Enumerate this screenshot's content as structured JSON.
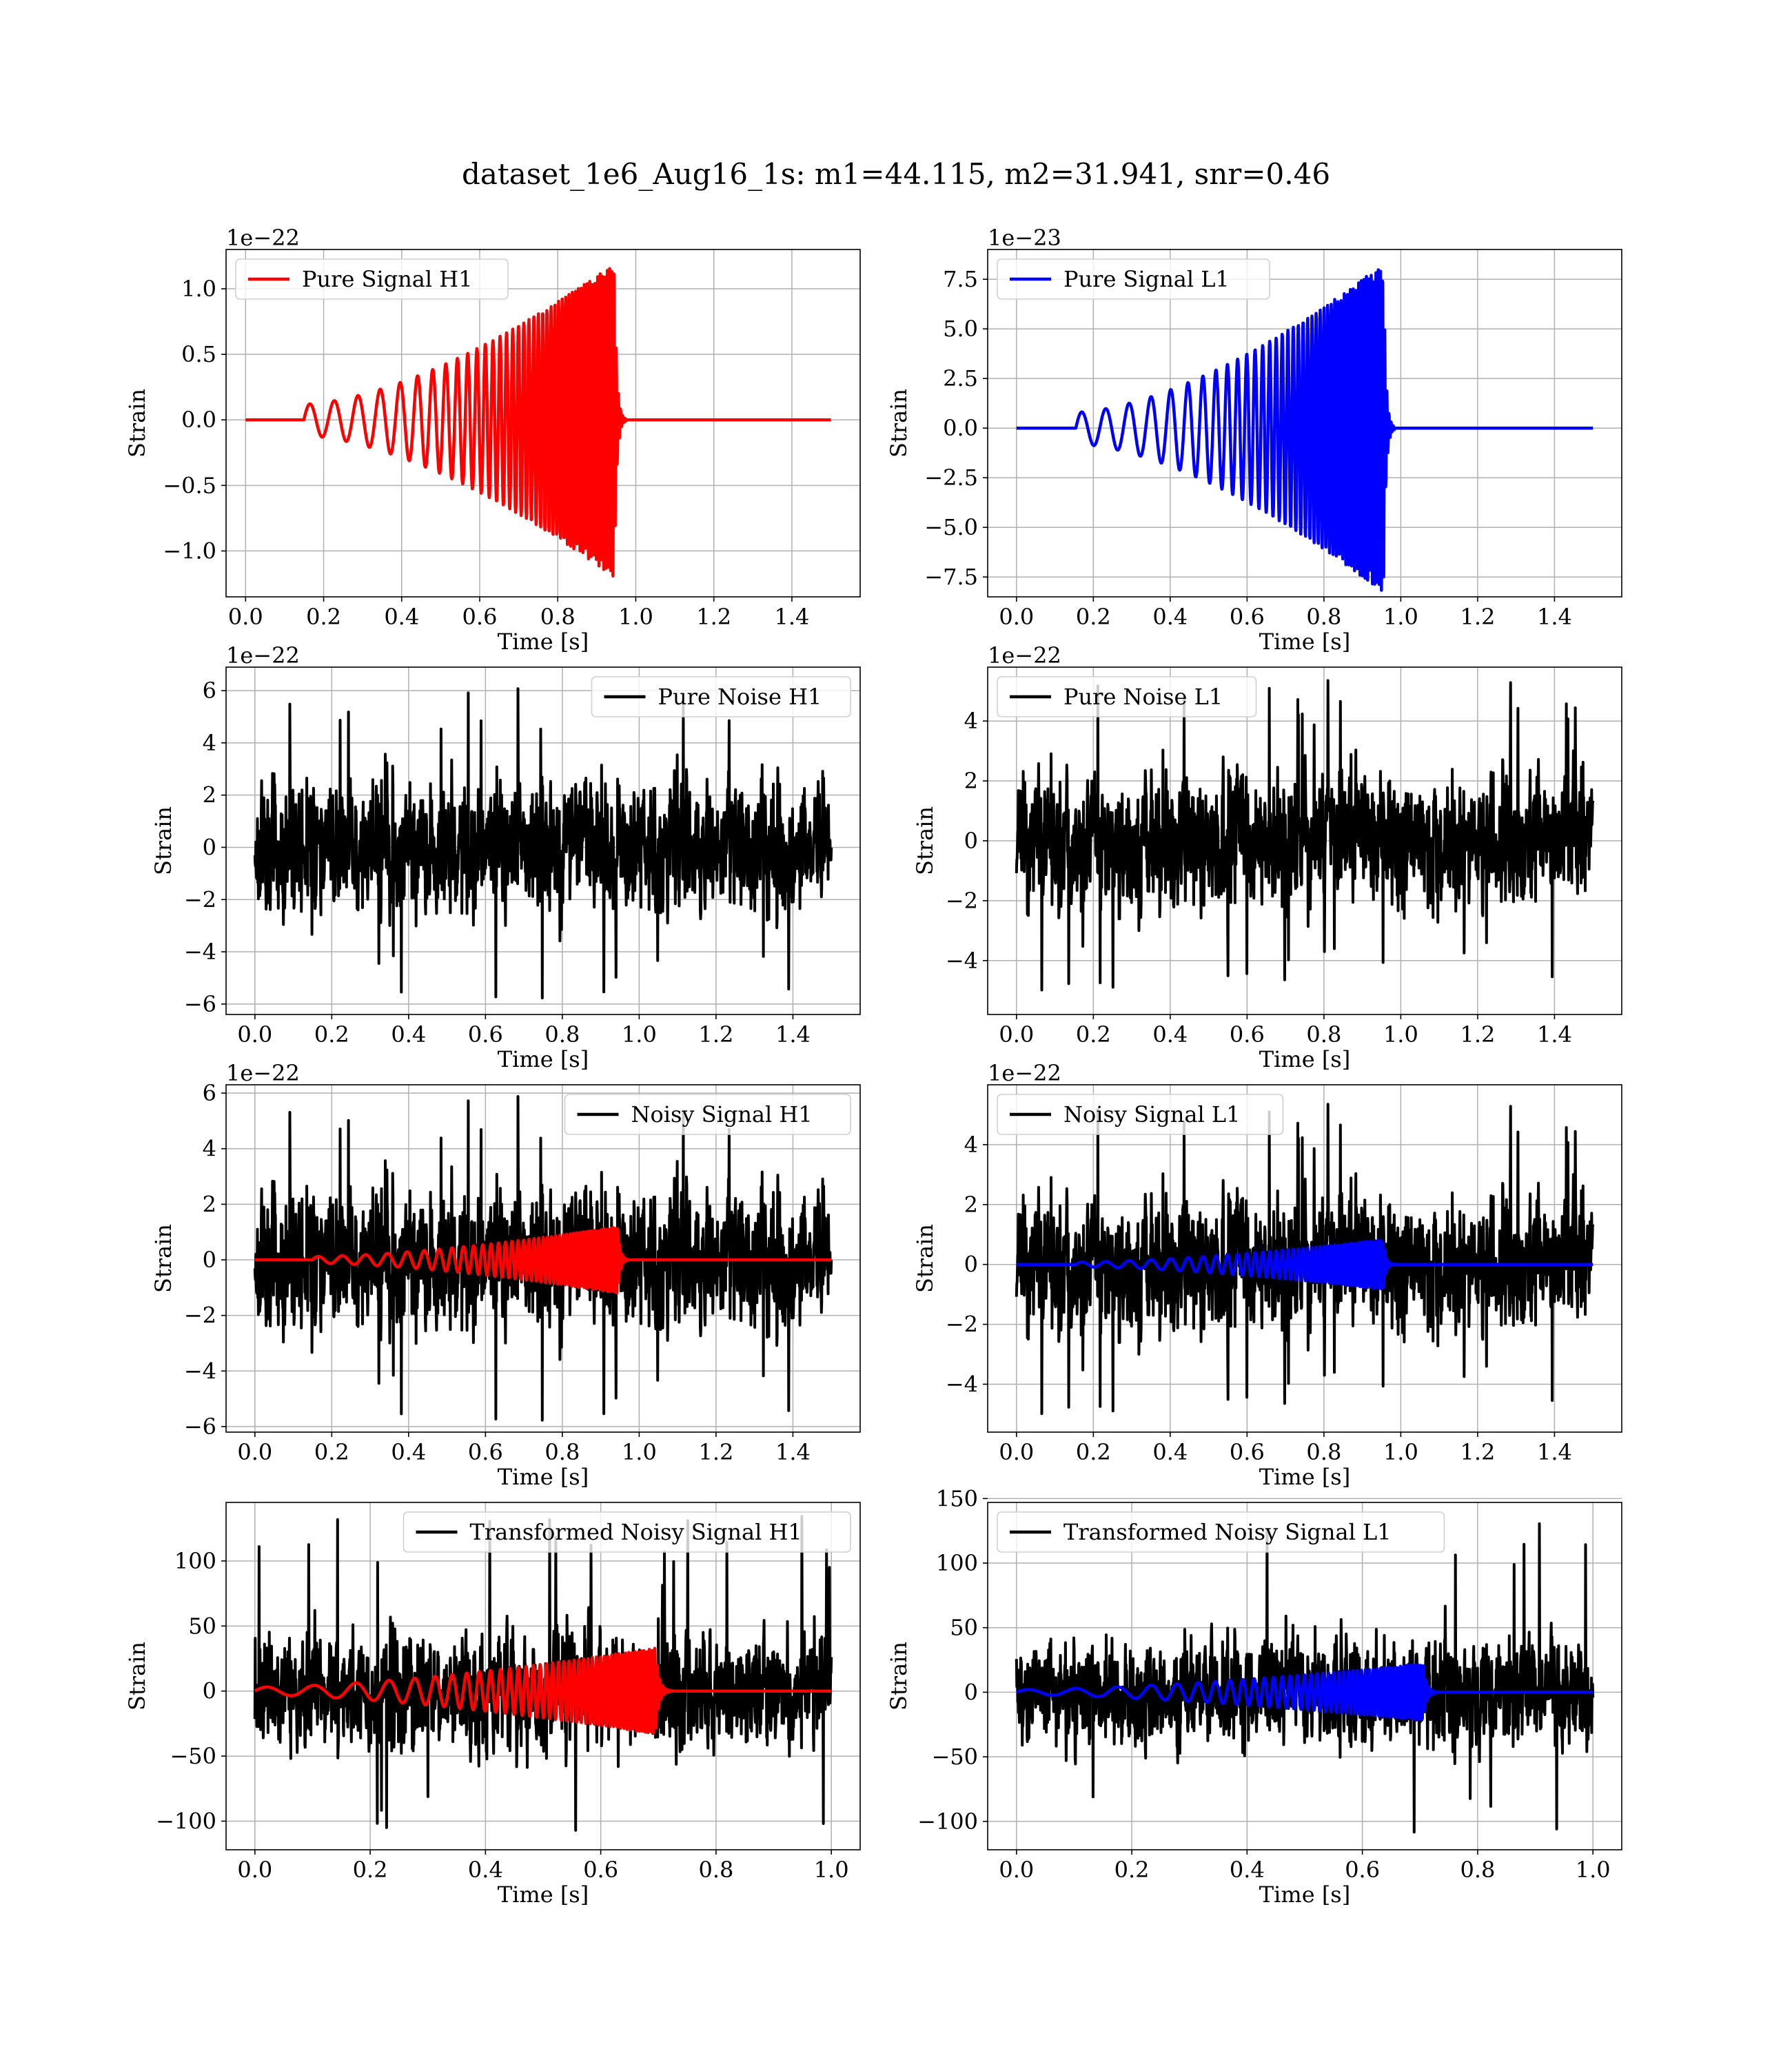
{
  "figure": {
    "title": "dataset_1e6_Aug16_1s: m1=44.115, m2=31.941, snr=0.46",
    "colors": {
      "h1_signal": "#ff0000",
      "l1_signal": "#0000ff",
      "noise": "#000000"
    }
  },
  "chart_data": [
    {
      "id": "pure-signal-h1",
      "type": "line",
      "xlabel": "Time [s]",
      "ylabel": "Strain",
      "offset_text": "1e−22",
      "xlim": [
        -0.05,
        1.575
      ],
      "ylim": [
        -1.35,
        1.3
      ],
      "xticks": [
        0.0,
        0.2,
        0.4,
        0.6,
        0.8,
        1.0,
        1.2,
        1.4
      ],
      "xtick_labels": [
        "0.0",
        "0.2",
        "0.4",
        "0.6",
        "0.8",
        "1.0",
        "1.2",
        "1.4"
      ],
      "yticks": [
        -1.0,
        -0.5,
        0.0,
        0.5,
        1.0
      ],
      "ytick_labels": [
        "−1.0",
        "−0.5",
        "0.0",
        "0.5",
        "1.0"
      ],
      "grid": true,
      "legend_position": "upper-left",
      "series": [
        {
          "name": "Pure Signal H1",
          "color": "#ff0000",
          "kind": "chirp",
          "x_range": [
            0.0,
            1.5
          ],
          "chirp": {
            "t_start": 0.15,
            "t_merge": 0.945,
            "peak_amplitude": 1.2,
            "start_amplitude": 0.12,
            "start_frequency": 16,
            "end_frequency": 180
          }
        }
      ]
    },
    {
      "id": "pure-signal-l1",
      "type": "line",
      "xlabel": "Time [s]",
      "ylabel": "Strain",
      "offset_text": "1e−23",
      "xlim": [
        -0.075,
        1.575
      ],
      "ylim": [
        -8.5,
        9.0
      ],
      "xticks": [
        0.0,
        0.2,
        0.4,
        0.6,
        0.8,
        1.0,
        1.2,
        1.4
      ],
      "xtick_labels": [
        "0.0",
        "0.2",
        "0.4",
        "0.6",
        "0.8",
        "1.0",
        "1.2",
        "1.4"
      ],
      "yticks": [
        -7.5,
        -5.0,
        -2.5,
        0.0,
        2.5,
        5.0,
        7.5
      ],
      "ytick_labels": [
        "−7.5",
        "−5.0",
        "−2.5",
        "0.0",
        "2.5",
        "5.0",
        "7.5"
      ],
      "grid": true,
      "legend_position": "upper-left",
      "series": [
        {
          "name": "Pure Signal L1",
          "color": "#0000ff",
          "kind": "chirp",
          "x_range": [
            0.0,
            1.5
          ],
          "chirp": {
            "t_start": 0.155,
            "t_merge": 0.955,
            "peak_amplitude": 8.3,
            "start_amplitude": 0.8,
            "start_frequency": 16,
            "end_frequency": 180
          }
        }
      ]
    },
    {
      "id": "pure-noise-h1",
      "type": "line",
      "xlabel": "Time [s]",
      "ylabel": "Strain",
      "offset_text": "1e−22",
      "xlim": [
        -0.075,
        1.575
      ],
      "ylim": [
        -6.4,
        6.9
      ],
      "xticks": [
        0.0,
        0.2,
        0.4,
        0.6,
        0.8,
        1.0,
        1.2,
        1.4
      ],
      "xtick_labels": [
        "0.0",
        "0.2",
        "0.4",
        "0.6",
        "0.8",
        "1.0",
        "1.2",
        "1.4"
      ],
      "yticks": [
        -6,
        -4,
        -2,
        0,
        2,
        4,
        6
      ],
      "ytick_labels": [
        "−6",
        "−4",
        "−2",
        "0",
        "2",
        "4",
        "6"
      ],
      "grid": true,
      "legend_position": "upper-right",
      "series": [
        {
          "name": "Pure Noise H1",
          "color": "#000000",
          "kind": "noise",
          "x_range": [
            0.0,
            1.5
          ],
          "noise": {
            "amplitude": 1.7,
            "max": 6.2,
            "min": -5.8,
            "seed": 11
          }
        }
      ]
    },
    {
      "id": "pure-noise-l1",
      "type": "line",
      "xlabel": "Time [s]",
      "ylabel": "Strain",
      "offset_text": "1e−22",
      "xlim": [
        -0.075,
        1.575
      ],
      "ylim": [
        -5.8,
        5.8
      ],
      "xticks": [
        0.0,
        0.2,
        0.4,
        0.6,
        0.8,
        1.0,
        1.2,
        1.4
      ],
      "xtick_labels": [
        "0.0",
        "0.2",
        "0.4",
        "0.6",
        "0.8",
        "1.0",
        "1.2",
        "1.4"
      ],
      "yticks": [
        -4,
        -2,
        0,
        2,
        4
      ],
      "ytick_labels": [
        "−4",
        "−2",
        "0",
        "2",
        "4"
      ],
      "grid": true,
      "legend_position": "upper-left",
      "series": [
        {
          "name": "Pure Noise L1",
          "color": "#000000",
          "kind": "noise",
          "x_range": [
            0.0,
            1.5
          ],
          "noise": {
            "amplitude": 1.5,
            "max": 5.4,
            "min": -5.0,
            "seed": 23
          }
        }
      ]
    },
    {
      "id": "noisy-signal-h1",
      "type": "line",
      "xlabel": "Time [s]",
      "ylabel": "Strain",
      "offset_text": "1e−22",
      "xlim": [
        -0.075,
        1.575
      ],
      "ylim": [
        -6.2,
        6.3
      ],
      "xticks": [
        0.0,
        0.2,
        0.4,
        0.6,
        0.8,
        1.0,
        1.2,
        1.4
      ],
      "xtick_labels": [
        "0.0",
        "0.2",
        "0.4",
        "0.6",
        "0.8",
        "1.0",
        "1.2",
        "1.4"
      ],
      "yticks": [
        -6,
        -4,
        -2,
        0,
        2,
        4,
        6
      ],
      "ytick_labels": [
        "−6",
        "−4",
        "−2",
        "0",
        "2",
        "4",
        "6"
      ],
      "grid": true,
      "legend_position": "upper-right",
      "series": [
        {
          "name": "Noisy Signal H1",
          "color": "#000000",
          "kind": "noise",
          "x_range": [
            0.0,
            1.5
          ],
          "noise": {
            "amplitude": 1.7,
            "max": 6.0,
            "min": -5.8,
            "seed": 11
          }
        },
        {
          "color": "#ff0000",
          "kind": "chirp",
          "x_range": [
            0.0,
            1.5
          ],
          "chirp": {
            "t_start": 0.15,
            "t_merge": 0.945,
            "peak_amplitude": 1.2,
            "start_amplitude": 0.12,
            "start_frequency": 16,
            "end_frequency": 180
          }
        }
      ]
    },
    {
      "id": "noisy-signal-l1",
      "type": "line",
      "xlabel": "Time [s]",
      "ylabel": "Strain",
      "offset_text": "1e−22",
      "xlim": [
        -0.075,
        1.575
      ],
      "ylim": [
        -5.6,
        6.0
      ],
      "xticks": [
        0.0,
        0.2,
        0.4,
        0.6,
        0.8,
        1.0,
        1.2,
        1.4
      ],
      "xtick_labels": [
        "0.0",
        "0.2",
        "0.4",
        "0.6",
        "0.8",
        "1.0",
        "1.2",
        "1.4"
      ],
      "yticks": [
        -4,
        -2,
        0,
        2,
        4
      ],
      "ytick_labels": [
        "−4",
        "−2",
        "0",
        "2",
        "4"
      ],
      "grid": true,
      "legend_position": "upper-left",
      "series": [
        {
          "name": "Noisy Signal L1",
          "color": "#000000",
          "kind": "noise",
          "x_range": [
            0.0,
            1.5
          ],
          "noise": {
            "amplitude": 1.5,
            "max": 5.4,
            "min": -5.0,
            "seed": 23
          }
        },
        {
          "color": "#0000ff",
          "kind": "chirp",
          "x_range": [
            0.0,
            1.5
          ],
          "chirp": {
            "t_start": 0.155,
            "t_merge": 0.955,
            "peak_amplitude": 0.83,
            "start_amplitude": 0.08,
            "start_frequency": 16,
            "end_frequency": 180
          }
        }
      ]
    },
    {
      "id": "transformed-noisy-signal-h1",
      "type": "line",
      "xlabel": "Time [s]",
      "ylabel": "Strain",
      "offset_text": "",
      "xlim": [
        -0.05,
        1.05
      ],
      "ylim": [
        -122,
        145
      ],
      "xticks": [
        0.0,
        0.2,
        0.4,
        0.6,
        0.8,
        1.0
      ],
      "xtick_labels": [
        "0.0",
        "0.2",
        "0.4",
        "0.6",
        "0.8",
        "1.0"
      ],
      "yticks": [
        -100,
        -50,
        0,
        50,
        100
      ],
      "ytick_labels": [
        "−100",
        "−50",
        "0",
        "50",
        "100"
      ],
      "grid": true,
      "legend_position": "upper-right",
      "series": [
        {
          "name": "Transformed Noisy Signal H1",
          "color": "#000000",
          "kind": "noise",
          "x_range": [
            0.0,
            1.0
          ],
          "noise": {
            "amplitude": 30,
            "max": 135,
            "min": -110,
            "seed": 37
          }
        },
        {
          "color": "#ff0000",
          "kind": "chirp",
          "x_range": [
            0.0,
            1.0
          ],
          "chirp": {
            "t_start": 0.0,
            "t_merge": 0.695,
            "peak_amplitude": 33,
            "start_amplitude": 3,
            "start_frequency": 12,
            "end_frequency": 220
          }
        }
      ]
    },
    {
      "id": "transformed-noisy-signal-l1",
      "type": "line",
      "xlabel": "Time [s]",
      "ylabel": "Strain",
      "offset_text": "",
      "xlim": [
        -0.05,
        1.05
      ],
      "ylim": [
        -122,
        147
      ],
      "xticks": [
        0.0,
        0.2,
        0.4,
        0.6,
        0.8,
        1.0
      ],
      "xtick_labels": [
        "0.0",
        "0.2",
        "0.4",
        "0.6",
        "0.8",
        "1.0"
      ],
      "yticks": [
        -100,
        -50,
        0,
        50,
        100,
        150
      ],
      "ytick_labels": [
        "−100",
        "−50",
        "0",
        "50",
        "100",
        "150"
      ],
      "grid": true,
      "legend_position": "upper-left",
      "series": [
        {
          "name": "Transformed Noisy Signal L1",
          "color": "#000000",
          "kind": "noise",
          "x_range": [
            0.0,
            1.0
          ],
          "noise": {
            "amplitude": 28,
            "max": 135,
            "min": -110,
            "seed": 53
          }
        },
        {
          "color": "#0000ff",
          "kind": "chirp",
          "x_range": [
            0.0,
            1.0
          ],
          "chirp": {
            "t_start": 0.0,
            "t_merge": 0.705,
            "peak_amplitude": 22,
            "start_amplitude": 2,
            "start_frequency": 12,
            "end_frequency": 220
          }
        }
      ]
    }
  ]
}
